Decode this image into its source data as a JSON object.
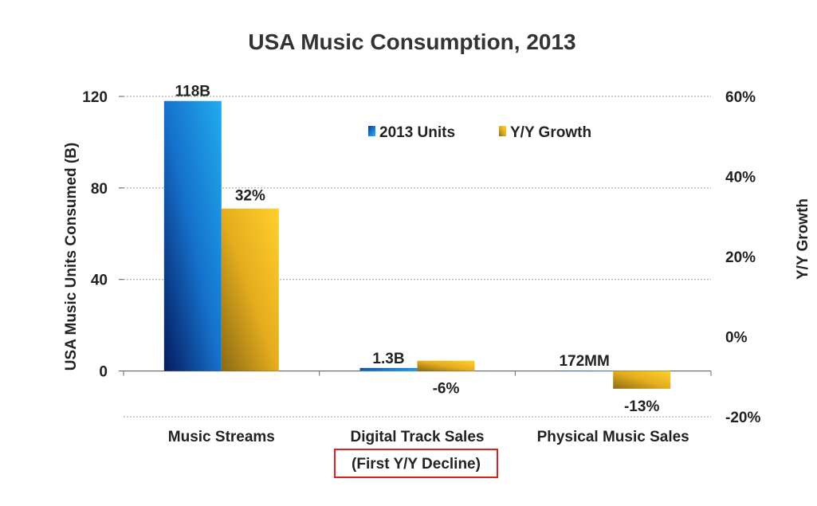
{
  "chart_data": {
    "type": "bar",
    "title": "USA Music Consumption, 2013",
    "categories": [
      "Music Streams",
      "Digital Track Sales",
      "Physical Music Sales"
    ],
    "category_notes": [
      "",
      "(First Y/Y Decline)",
      ""
    ],
    "ylabel": "USA Music Units Consumed (B)",
    "y2label": "Y/Y Growth",
    "ylim": [
      -20,
      120
    ],
    "y2lim": [
      -0.2,
      0.6
    ],
    "yticks": [
      "120",
      "80",
      "40",
      "0"
    ],
    "y2ticks": [
      "60%",
      "40%",
      "20%",
      "0%",
      "-20%"
    ],
    "grid": true,
    "legend_position": "top-center",
    "series": [
      {
        "name": "2013 Units",
        "axis": "left",
        "values": [
          118,
          1.3,
          0.172
        ],
        "labels": [
          "118B",
          "1.3B",
          "172MM"
        ],
        "color": "#1a7fd6"
      },
      {
        "name": "Y/Y Growth",
        "axis": "right",
        "values": [
          0.32,
          -0.06,
          -0.13
        ],
        "labels": [
          "32%",
          "-6%",
          "-13%"
        ],
        "color": "#f2b61c"
      }
    ]
  }
}
